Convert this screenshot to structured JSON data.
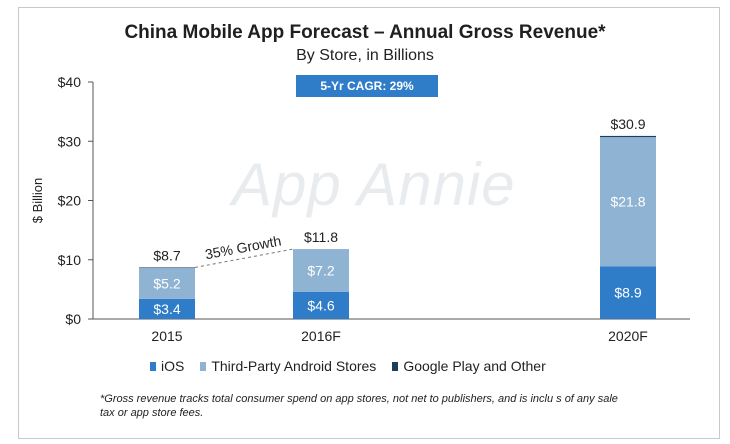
{
  "title": "China Mobile App Forecast – Annual Gross Revenue*",
  "subtitle": "By Store, in Billions",
  "cagr_badge": "5-Yr CAGR: 29%",
  "watermark": "App Annie",
  "growth_annotation": "35% Growth",
  "footnote": "*Gross revenue tracks total consumer spend on app stores, not net to publishers, and is inclu  s of any sale",
  "footnote_line2": "tax or app store fees.",
  "colors": {
    "ios": "#2f7dc9",
    "third_party": "#8fb3d3",
    "google_play": "#1f3d5c"
  },
  "chart_data": {
    "type": "bar",
    "stacked": true,
    "categories": [
      "2015",
      "2016F",
      "2020F"
    ],
    "series": [
      {
        "name": "iOS",
        "values": [
          3.4,
          4.6,
          8.9
        ],
        "labels": [
          "$3.4",
          "$4.6",
          "$8.9"
        ]
      },
      {
        "name": "Third-Party Android Stores",
        "values": [
          5.2,
          7.2,
          21.8
        ],
        "labels": [
          "$5.2",
          "$7.2",
          "$21.8"
        ]
      },
      {
        "name": "Google Play and Other",
        "values": [
          0.1,
          0,
          0.2
        ],
        "labels": [
          "",
          "",
          ""
        ]
      }
    ],
    "totals": [
      8.7,
      11.8,
      30.9
    ],
    "total_labels": [
      "$8.7",
      "$11.8",
      "$30.9"
    ],
    "ylabel": "$ Billion",
    "ylim": [
      0,
      40
    ],
    "yticks": [
      0,
      10,
      20,
      30,
      40
    ],
    "ytick_labels": [
      "$0",
      "$10",
      "$20",
      "$30",
      "$40"
    ],
    "legend_position": "bottom",
    "grid": false
  }
}
